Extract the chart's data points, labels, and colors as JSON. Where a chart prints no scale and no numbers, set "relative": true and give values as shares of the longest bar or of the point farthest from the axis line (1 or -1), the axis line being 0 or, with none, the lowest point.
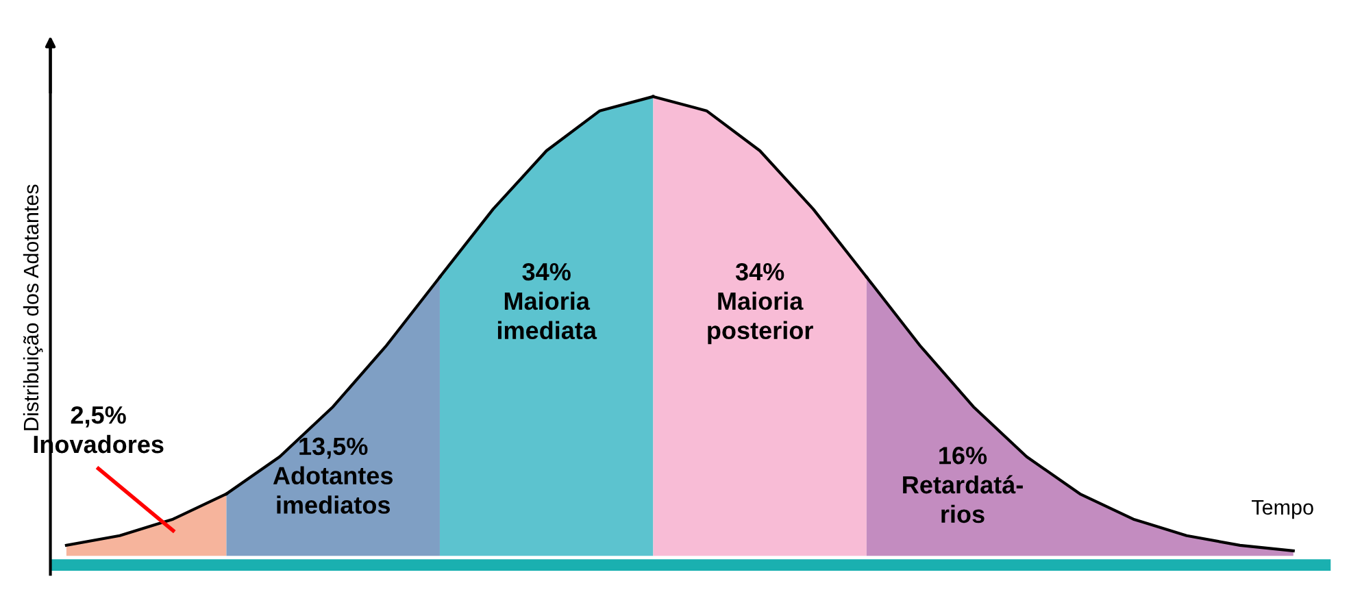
{
  "chart_data": {
    "type": "area",
    "relative": true,
    "xlabel": "Tempo",
    "ylabel": "Distribuição dos Adotantes",
    "categories": [
      null,
      null,
      null,
      null,
      null,
      null,
      null,
      null,
      null,
      null,
      null,
      null,
      null,
      null,
      null,
      null,
      null,
      null,
      null,
      null,
      null,
      null,
      null,
      null
    ],
    "series": [
      {
        "color": "#f6b49c",
        "values": [
          0.023,
          0.044,
          0.08,
          0.135,
          null,
          null,
          null,
          null,
          null,
          null,
          null,
          null,
          null,
          null,
          null,
          null,
          null,
          null,
          null,
          null,
          null,
          null,
          null,
          null
        ]
      },
      {
        "color": "#7f9fc4",
        "values": [
          null,
          null,
          null,
          0.135,
          0.216,
          0.325,
          0.458,
          0.607,
          null,
          null,
          null,
          null,
          null,
          null,
          null,
          null,
          null,
          null,
          null,
          null,
          null,
          null,
          null,
          null
        ]
      },
      {
        "color": "#5cc3cf",
        "values": [
          null,
          null,
          null,
          null,
          null,
          null,
          null,
          0.607,
          0.755,
          0.882,
          0.969,
          1,
          null,
          null,
          null,
          null,
          null,
          null,
          null,
          null,
          null,
          null,
          null,
          null
        ]
      },
      {
        "color": "#f8bcd6",
        "values": [
          null,
          null,
          null,
          null,
          null,
          null,
          null,
          null,
          null,
          null,
          null,
          1,
          0.969,
          0.882,
          0.755,
          0.607,
          null,
          null,
          null,
          null,
          null,
          null,
          null,
          null
        ]
      },
      {
        "color": "#c38cc0",
        "values": [
          null,
          null,
          null,
          null,
          null,
          null,
          null,
          null,
          null,
          null,
          null,
          null,
          null,
          null,
          null,
          0.607,
          0.458,
          0.325,
          0.216,
          0.135,
          0.08,
          0.044,
          0.023,
          0.011
        ]
      }
    ],
    "annotations": [
      "2,5%\nInovadores",
      "13,5%\nAdotantes\nimediatos",
      "34%\nMaioria\nimediata",
      "34%\nMaioria\nposterior",
      "16%\nRetardatá-\nrios"
    ],
    "grid": false
  }
}
